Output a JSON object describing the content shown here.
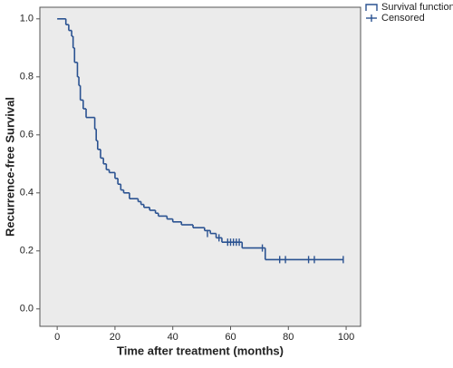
{
  "chart_data": {
    "type": "survival",
    "xlabel": "Time after treatment (months)",
    "ylabel": "Recurrence-free Survival",
    "xlim": [
      -6,
      105
    ],
    "ylim": [
      -0.06,
      1.04
    ],
    "xticks": [
      0,
      20,
      40,
      60,
      80,
      100
    ],
    "yticks": [
      {
        "value": 0,
        "label": "0.0"
      },
      0.2,
      0.4,
      0.6,
      0.8,
      {
        "value": 1,
        "label": "1.0"
      }
    ],
    "legend": "top-right-outside",
    "series": [
      {
        "name": "Survival function",
        "color": "#2a5291",
        "x": [
          0,
          3,
          4,
          5,
          5.5,
          6,
          7,
          7.5,
          8,
          9,
          10,
          13,
          13.5,
          14,
          15,
          16,
          17,
          18,
          20,
          21,
          22,
          23,
          25,
          28,
          29,
          30,
          32,
          34,
          35,
          38,
          40,
          43,
          47,
          51,
          53,
          55,
          57,
          64,
          72,
          99
        ],
        "values": [
          1.0,
          0.98,
          0.96,
          0.94,
          0.9,
          0.85,
          0.8,
          0.77,
          0.72,
          0.69,
          0.66,
          0.62,
          0.58,
          0.55,
          0.52,
          0.5,
          0.48,
          0.47,
          0.45,
          0.43,
          0.41,
          0.4,
          0.38,
          0.37,
          0.36,
          0.35,
          0.34,
          0.33,
          0.32,
          0.31,
          0.3,
          0.29,
          0.28,
          0.27,
          0.26,
          0.245,
          0.23,
          0.21,
          0.17,
          0.17
        ]
      },
      {
        "name": "Censored",
        "color": "#2a5291",
        "x": [
          52,
          56,
          59,
          60,
          61,
          62,
          63,
          71,
          77,
          79,
          87,
          89,
          99
        ],
        "values": [
          0.26,
          0.245,
          0.23,
          0.23,
          0.23,
          0.23,
          0.23,
          0.21,
          0.17,
          0.17,
          0.17,
          0.17,
          0.17
        ]
      }
    ]
  }
}
